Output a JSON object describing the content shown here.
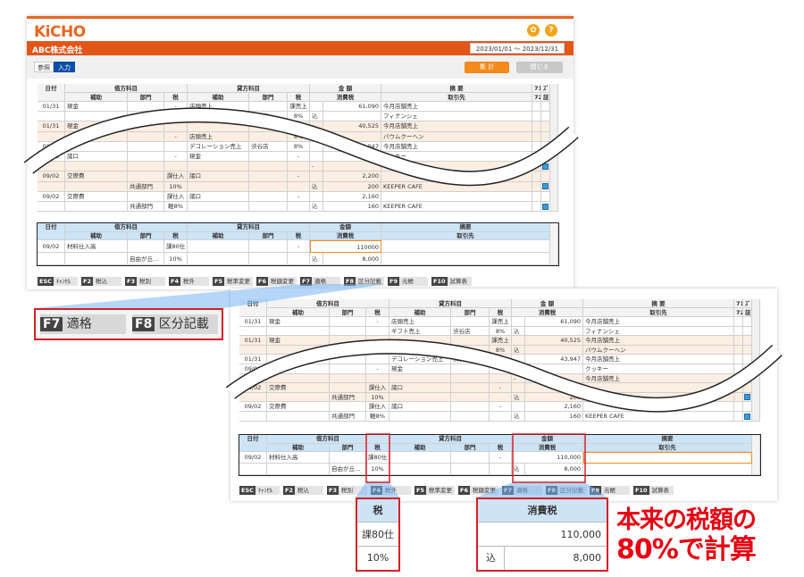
{
  "app": {
    "logo": "KiCHO",
    "company": "ABC株式会社",
    "period": "2023/01/01 〜 2023/12/31",
    "tabs": [
      "参照",
      "入力"
    ],
    "total_btn": "集 計",
    "close_btn": "閉じる",
    "settings_icon": "gear-icon",
    "help_icon": "?"
  },
  "colors": {
    "brand": "#e2561a",
    "accent": "#f28a1e",
    "peach": "#fbeee3",
    "entry_header": "#cde4f7",
    "highlight": "#e60012"
  },
  "table": {
    "h1": [
      "日付",
      "借方科目",
      "貸方科目",
      "金 額",
      "摘 要",
      "71",
      "ｽﾞ"
    ],
    "h2": [
      "補助",
      "部門",
      "税",
      "補助",
      "部門",
      "税",
      "消費税",
      "取引先",
      "72",
      "証"
    ],
    "rows": [
      {
        "shade": false,
        "v": [
          "01/31",
          "現金",
          "",
          "-",
          "店頭売上",
          "",
          "課売上",
          "",
          "61,090",
          "今月店舗売上"
        ],
        "icon": false
      },
      {
        "shade": false,
        "v": [
          "",
          "",
          "",
          "",
          "ギフト売上",
          "渋谷店",
          "8%",
          "込",
          "",
          "フィナンシェ"
        ],
        "icon": false
      },
      {
        "shade": true,
        "v": [
          "01/31",
          "現金",
          "",
          "",
          "",
          "",
          "課売上",
          "",
          "40,525",
          "今月店舗売上"
        ],
        "icon": false
      },
      {
        "shade": true,
        "v": [
          "",
          "",
          "",
          "-",
          "店頭売上",
          "",
          "8%",
          "込",
          "",
          "バウムクーヘン"
        ],
        "icon": false
      },
      {
        "shade": false,
        "v": [
          "01/31",
          "",
          "",
          "",
          "デコレーション売上",
          "渋谷店",
          "8%",
          "",
          "43,947",
          "今月店舗売上"
        ],
        "icon": false
      },
      {
        "shade": false,
        "v": [
          "09/02",
          "諸口",
          "",
          "-",
          "現金",
          "",
          "-",
          "",
          "",
          "クッキー"
        ],
        "icon": false
      },
      {
        "shade": true,
        "v": [
          "",
          "",
          "",
          "",
          "",
          "",
          "",
          "-",
          "",
          "今月店舗売上"
        ],
        "icon": true
      },
      {
        "shade": true,
        "v": [
          "09/02",
          "交際費",
          "",
          "課仕入",
          "諸口",
          "",
          "-",
          "",
          "2,200",
          ""
        ],
        "icon": false
      },
      {
        "shade": true,
        "v": [
          "",
          "",
          "共通部門",
          "10%",
          "",
          "",
          "",
          "込",
          "200",
          "KEEPER CAFE"
        ],
        "icon": true
      },
      {
        "shade": false,
        "v": [
          "09/02",
          "交際費",
          "",
          "課仕入",
          "諸口",
          "",
          "-",
          "",
          "2,160",
          ""
        ],
        "icon": false
      },
      {
        "shade": false,
        "v": [
          "",
          "",
          "共通部門",
          "軽8%",
          "",
          "",
          "",
          "込",
          "160",
          "KEEPER CAFE"
        ],
        "icon": true
      }
    ]
  },
  "entry": {
    "h1": [
      "日付",
      "借方科目",
      "貸方科目",
      "金額",
      "摘要"
    ],
    "h2": [
      "補助",
      "部門",
      "税",
      "補助",
      "部門",
      "税",
      "消費税",
      "取引先"
    ],
    "rows_a": [
      [
        "09/02",
        "材料仕入高",
        "",
        "課80仕",
        "",
        "",
        "-",
        "",
        "110000",
        ""
      ],
      [
        "",
        "",
        "自由が丘…",
        "10%",
        "",
        "",
        "",
        "込",
        "8,000",
        ""
      ]
    ],
    "rows_b": [
      [
        "09/02",
        "材料仕入高",
        "",
        "課80仕",
        "",
        "",
        "-",
        "",
        "110,000",
        ""
      ],
      [
        "",
        "",
        "自由が丘…",
        "10%",
        "",
        "",
        "",
        "込",
        "8,000",
        ""
      ]
    ]
  },
  "fkeys": [
    {
      "k": "ESC",
      "l": "ｷｬﾝｾﾙ"
    },
    {
      "k": "F2",
      "l": "税込"
    },
    {
      "k": "F3",
      "l": "税別"
    },
    {
      "k": "F4",
      "l": "税外"
    },
    {
      "k": "F5",
      "l": "税率変更"
    },
    {
      "k": "F6",
      "l": "税額変更"
    },
    {
      "k": "F7",
      "l": "適格"
    },
    {
      "k": "F8",
      "l": "区分記載"
    },
    {
      "k": "F9",
      "l": "元帳"
    },
    {
      "k": "F10",
      "l": "試算表"
    }
  ],
  "callout": {
    "f7": {
      "k": "F7",
      "l": "適格"
    },
    "f8": {
      "k": "F8",
      "l": "区分記載"
    },
    "tax": {
      "header": "税",
      "v1": "課80仕",
      "v2": "10%"
    },
    "ctax": {
      "header": "消費税",
      "v1": "110,000",
      "komi": "込",
      "v2": "8,000"
    },
    "note": [
      "本来の税額の",
      "80%で計算"
    ]
  }
}
